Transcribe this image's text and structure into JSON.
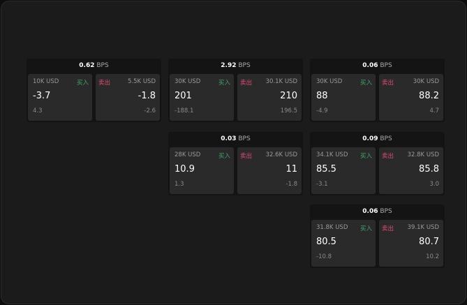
{
  "unit": "BPS",
  "buy_label": "买入",
  "sell_label": "卖出",
  "colors": {
    "buy": "#3ea66a",
    "sell": "#e04a72"
  },
  "cards": [
    {
      "spread": "0.62",
      "bid_size": "10K USD",
      "bid": "-3.7",
      "bid_change": "4.3",
      "ask_size": "5.5K USD",
      "ask": "-1.8",
      "ask_change": "-2.6"
    },
    {
      "spread": "2.92",
      "bid_size": "30K USD",
      "bid": "201",
      "bid_change": "-188.1",
      "ask_size": "30.1K USD",
      "ask": "210",
      "ask_change": "196.5"
    },
    {
      "spread": "0.06",
      "bid_size": "30K USD",
      "bid": "88",
      "bid_change": "-4.9",
      "ask_size": "30K USD",
      "ask": "88.2",
      "ask_change": "4.7"
    },
    {
      "spread": "0.03",
      "bid_size": "28K USD",
      "bid": "10.9",
      "bid_change": "1.3",
      "ask_size": "32.6K USD",
      "ask": "11",
      "ask_change": "-1.8"
    },
    {
      "spread": "0.09",
      "bid_size": "34.1K USD",
      "bid": "85.5",
      "bid_change": "-3.1",
      "ask_size": "32.8K USD",
      "ask": "85.8",
      "ask_change": "3.0"
    },
    {
      "spread": "0.06",
      "bid_size": "31.8K USD",
      "bid": "80.5",
      "bid_change": "-10.8",
      "ask_size": "39.1K USD",
      "ask": "80.7",
      "ask_change": "10.2"
    }
  ]
}
